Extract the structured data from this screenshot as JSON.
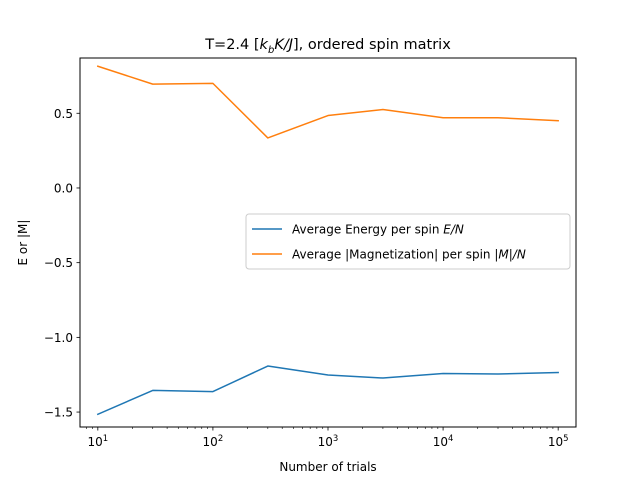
{
  "chart_data": {
    "type": "line",
    "title_parts": [
      "T=2.4 [",
      "k",
      "b",
      "K/J",
      "], ordered spin matrix"
    ],
    "xlabel": "Number of trials",
    "ylabel": "E or |M|",
    "xscale": "log",
    "xlim": [
      7.0,
      142857
    ],
    "ylim": [
      -1.6,
      0.87
    ],
    "x": [
      10,
      30,
      100,
      300,
      1000,
      3000,
      10000,
      30000,
      100000
    ],
    "xticks": [
      {
        "value": 10,
        "base": "10",
        "exp": "1"
      },
      {
        "value": 100,
        "base": "10",
        "exp": "2"
      },
      {
        "value": 1000,
        "base": "10",
        "exp": "3"
      },
      {
        "value": 10000,
        "base": "10",
        "exp": "4"
      },
      {
        "value": 100000,
        "base": "10",
        "exp": "5"
      }
    ],
    "yticks": [
      {
        "value": -1.5,
        "label": "−1.5"
      },
      {
        "value": -1.0,
        "label": "−1.0"
      },
      {
        "value": -0.5,
        "label": "−0.5"
      },
      {
        "value": 0.0,
        "label": "0.0"
      },
      {
        "value": 0.5,
        "label": "0.5"
      }
    ],
    "series": [
      {
        "legend_parts": [
          "Average Energy per spin ",
          "E/N"
        ],
        "color": "#1f77b4",
        "values": [
          -1.515,
          -1.355,
          -1.363,
          -1.192,
          -1.252,
          -1.272,
          -1.242,
          -1.245,
          -1.235
        ]
      },
      {
        "legend_parts": [
          "Average |Magnetization| per spin ",
          "|M|/N"
        ],
        "color": "#ff7f0e",
        "values": [
          0.815,
          0.695,
          0.7,
          0.335,
          0.485,
          0.525,
          0.47,
          0.47,
          0.45
        ]
      }
    ],
    "grid": false,
    "legend_position": "center-right"
  }
}
